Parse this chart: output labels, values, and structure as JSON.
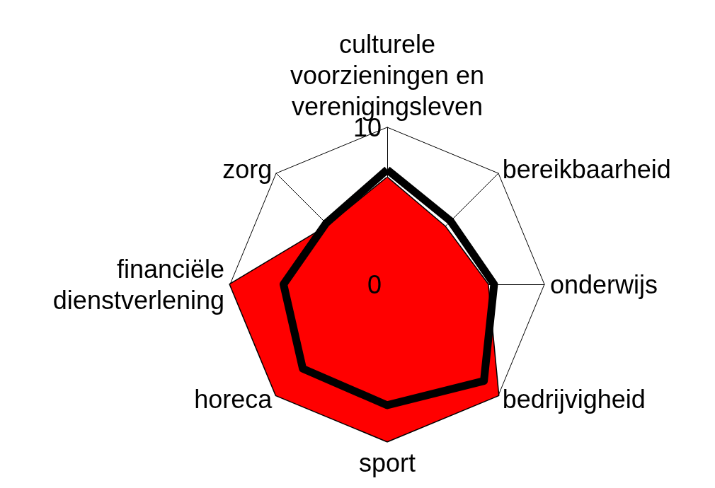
{
  "chart_data": {
    "type": "radar",
    "categories": [
      "culturele voorzieningen en verenigingsleven",
      "bereikbaarheid",
      "onderwijs",
      "bedrijvigheid",
      "sport",
      "horeca",
      "financiële dienstverlening",
      "zorg"
    ],
    "series": [
      {
        "type": "area",
        "color": "#ff0000",
        "values": [
          6.8,
          5.2,
          6.4,
          10,
          10,
          10,
          10,
          5.3
        ]
      },
      {
        "color": "#000000",
        "values": [
          7.3,
          5.7,
          6.8,
          8.7,
          7.7,
          7.6,
          6.6,
          5.5
        ]
      }
    ],
    "ylim": [
      0,
      10
    ],
    "yticks": [
      0,
      10
    ],
    "grid": true,
    "marker": "none"
  }
}
